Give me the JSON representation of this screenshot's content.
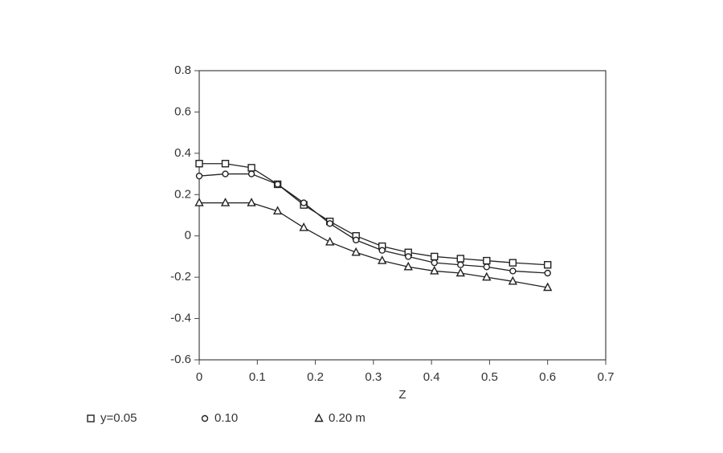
{
  "chart_data": {
    "type": "line",
    "x_label": "Z",
    "x": [
      0,
      0.045,
      0.09,
      0.135,
      0.18,
      0.225,
      0.27,
      0.315,
      0.36,
      0.405,
      0.45,
      0.495,
      0.54,
      0.6
    ],
    "series": [
      {
        "name": "y=0.05",
        "color": "#222222",
        "marker": "square",
        "values": [
          0.35,
          0.35,
          0.33,
          0.25,
          0.15,
          0.07,
          0.0,
          -0.05,
          -0.08,
          -0.1,
          -0.11,
          -0.12,
          -0.13,
          -0.14
        ]
      },
      {
        "name": "0.10",
        "color": "#222222",
        "marker": "circle",
        "values": [
          0.29,
          0.3,
          0.3,
          0.25,
          0.16,
          0.06,
          -0.02,
          -0.07,
          -0.1,
          -0.13,
          -0.14,
          -0.15,
          -0.17,
          -0.18
        ]
      },
      {
        "name": "0.20 m",
        "color": "#222222",
        "marker": "triangle",
        "values": [
          0.16,
          0.16,
          0.16,
          0.12,
          0.04,
          -0.03,
          -0.08,
          -0.12,
          -0.15,
          -0.17,
          -0.18,
          -0.2,
          -0.22,
          -0.25
        ]
      }
    ],
    "xlim": [
      0,
      0.7
    ],
    "xticks": [
      0,
      0.1,
      0.2,
      0.3,
      0.4,
      0.5,
      0.6,
      0.7
    ],
    "ylim": [
      -0.6,
      0.8
    ],
    "yticks": [
      0.8,
      0.6,
      0.4,
      0.2,
      0,
      -0.2,
      -0.4,
      -0.6
    ],
    "grid": false,
    "legend": "bottom"
  }
}
